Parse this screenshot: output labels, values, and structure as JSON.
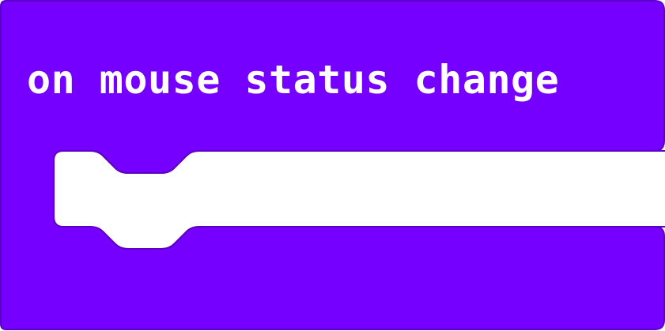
{
  "block": {
    "label": "on mouse status change",
    "category_color": "#7600FF",
    "outline_color": "#5B00C4",
    "label_color": "#FFFFFF"
  }
}
